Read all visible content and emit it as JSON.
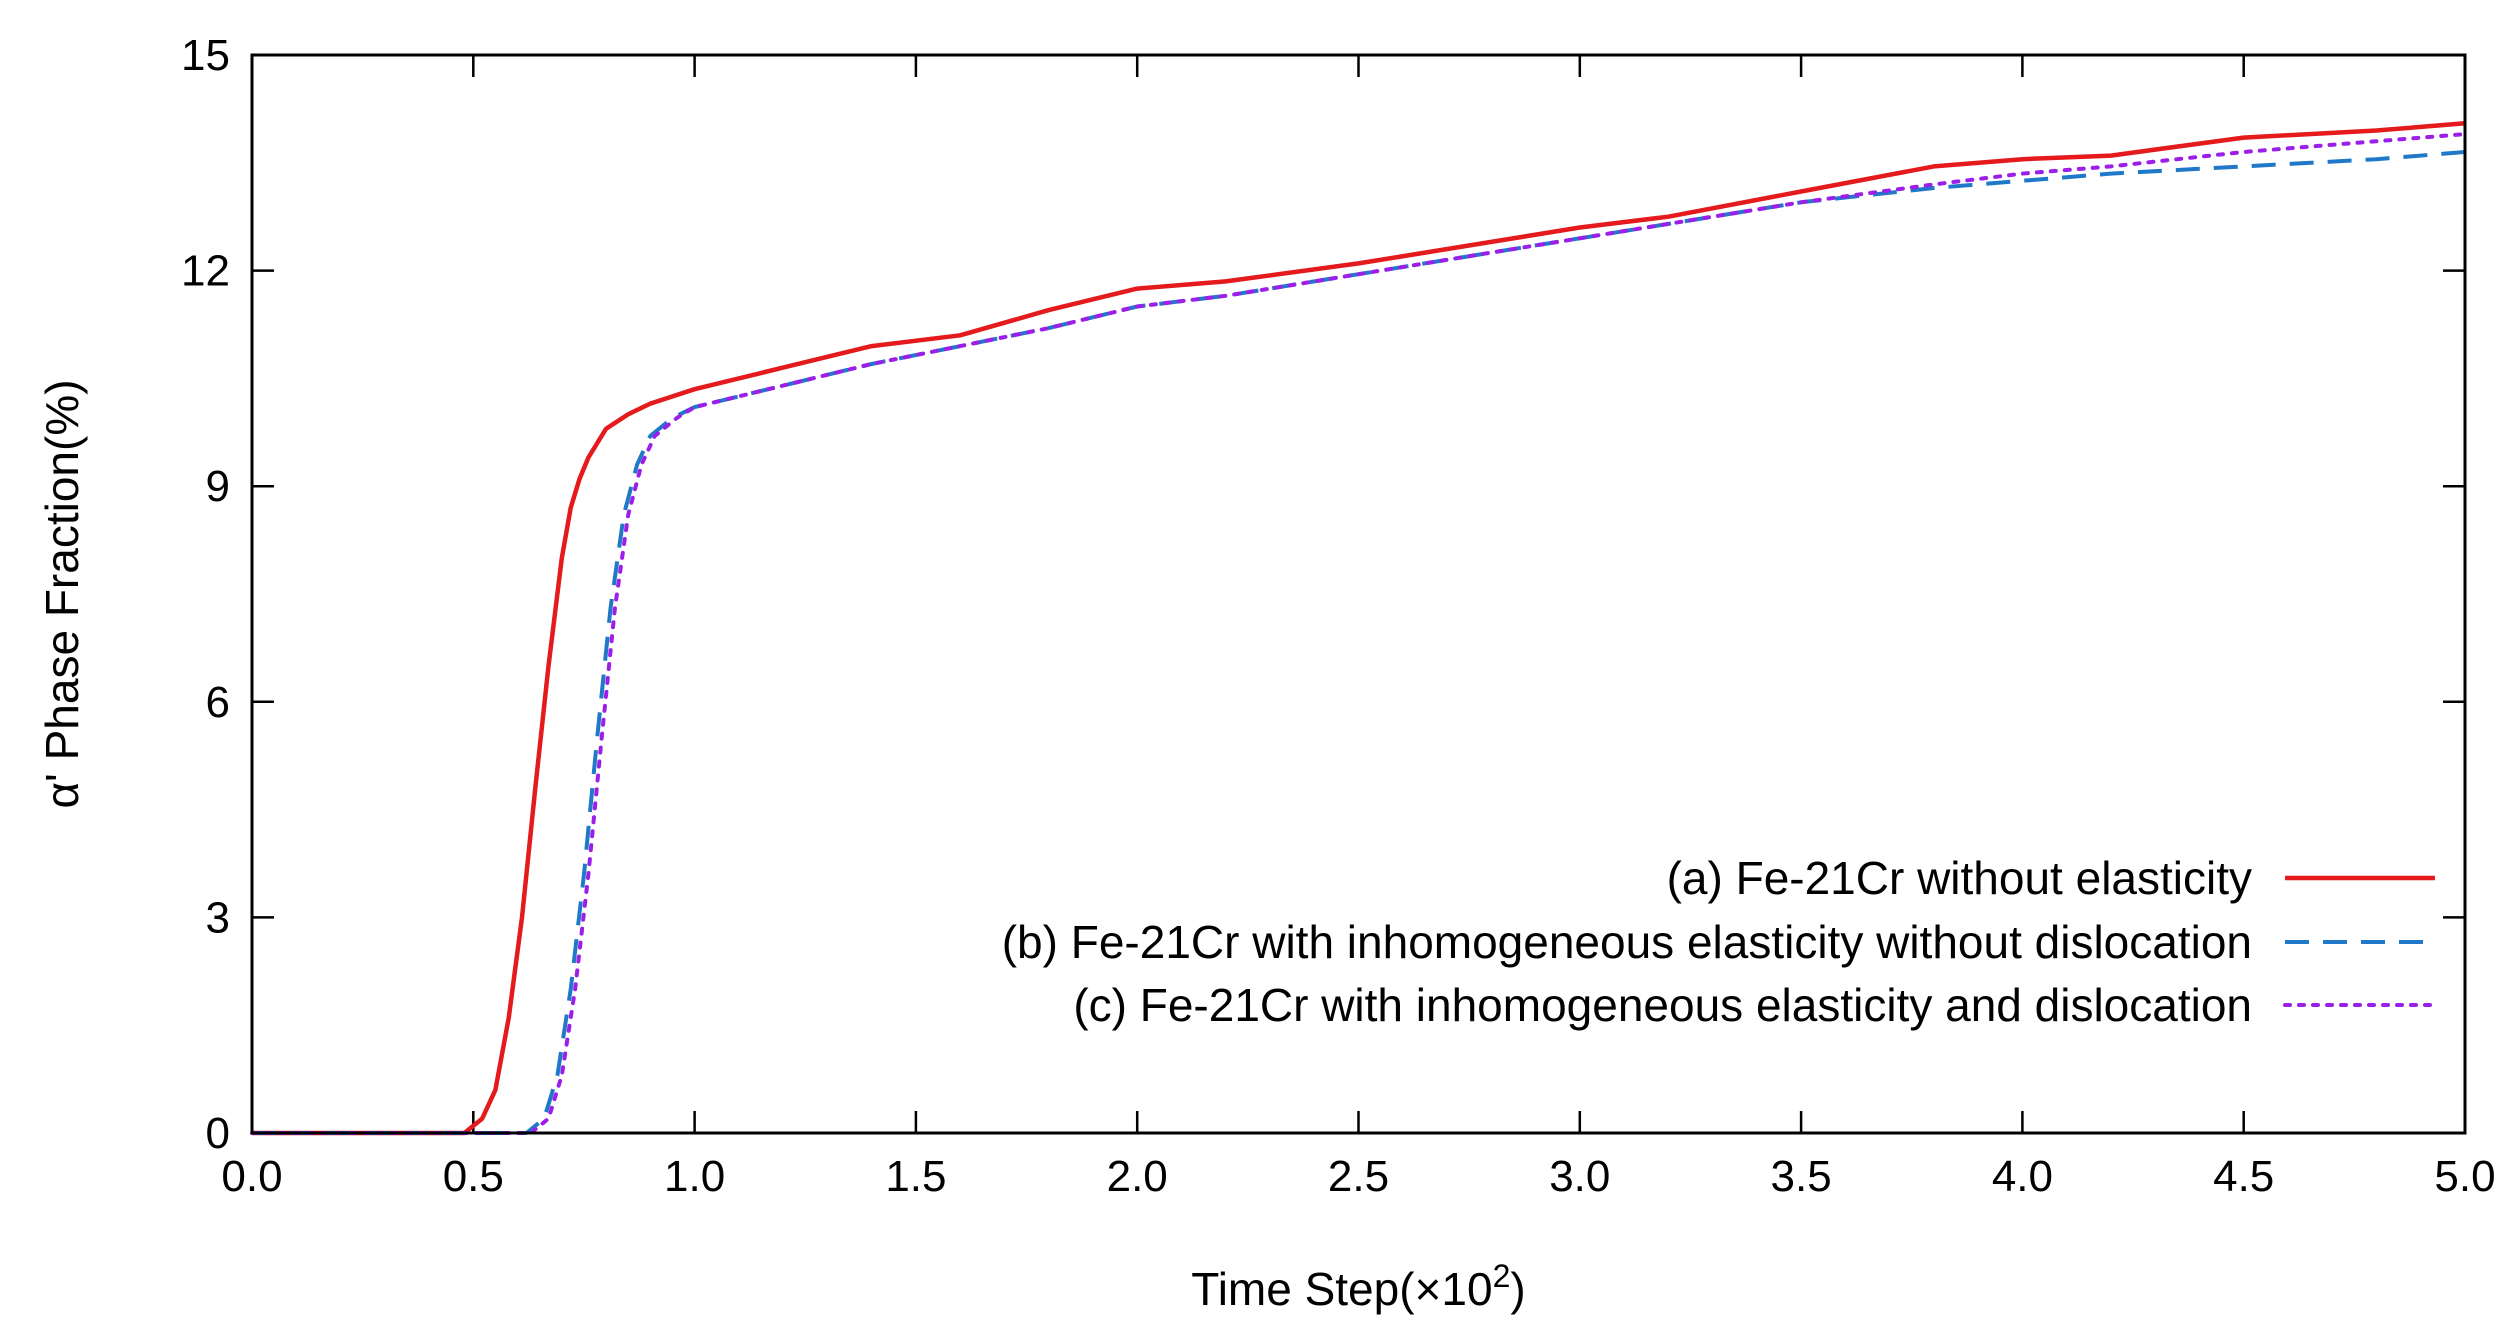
{
  "chart_data": {
    "type": "line",
    "title": "",
    "xlabel": "Time Step(×10",
    "xlabel_superscript": "2",
    "xlabel_suffix": ")",
    "ylabel": "α' Phase Fraction(%)",
    "xlim": [
      0.0,
      5.0
    ],
    "ylim": [
      0,
      15
    ],
    "xticks": [
      "0.0",
      "0.5",
      "1.0",
      "1.5",
      "2.0",
      "2.5",
      "3.0",
      "3.5",
      "4.0",
      "4.5",
      "5.0"
    ],
    "yticks": [
      "0",
      "3",
      "6",
      "9",
      "12",
      "15"
    ],
    "legend_position": "bottom-right",
    "series": [
      {
        "name": "(a) Fe-21Cr without elasticity",
        "color": "#e41a1c",
        "style": "solid",
        "x": [
          0.0,
          0.48,
          0.52,
          0.55,
          0.58,
          0.61,
          0.64,
          0.67,
          0.7,
          0.72,
          0.74,
          0.76,
          0.8,
          0.85,
          0.9,
          1.0,
          1.2,
          1.4,
          1.6,
          1.8,
          2.0,
          2.2,
          2.5,
          2.8,
          3.0,
          3.2,
          3.5,
          3.8,
          4.0,
          4.2,
          4.5,
          4.8,
          5.0
        ],
        "y": [
          0.0,
          0.0,
          0.2,
          0.6,
          1.6,
          3.0,
          4.8,
          6.5,
          8.0,
          8.7,
          9.1,
          9.4,
          9.8,
          10.0,
          10.15,
          10.35,
          10.65,
          10.95,
          11.1,
          11.45,
          11.75,
          11.85,
          12.1,
          12.4,
          12.6,
          12.75,
          13.1,
          13.45,
          13.55,
          13.6,
          13.85,
          13.95,
          14.05
        ]
      },
      {
        "name": "(b) Fe-21Cr with inhomogeneous elasticity without dislocation",
        "color": "#1f78c8",
        "style": "dashed",
        "x": [
          0.0,
          0.62,
          0.66,
          0.69,
          0.72,
          0.75,
          0.78,
          0.81,
          0.84,
          0.87,
          0.9,
          0.95,
          1.0,
          1.2,
          1.4,
          1.6,
          1.8,
          2.0,
          2.2,
          2.5,
          2.8,
          3.0,
          3.2,
          3.5,
          3.8,
          4.0,
          4.2,
          4.5,
          4.8,
          5.0
        ],
        "y": [
          0.0,
          0.0,
          0.2,
          0.8,
          2.0,
          3.6,
          5.5,
          7.3,
          8.6,
          9.3,
          9.7,
          9.95,
          10.1,
          10.4,
          10.7,
          10.95,
          11.2,
          11.5,
          11.65,
          11.95,
          12.25,
          12.45,
          12.65,
          12.95,
          13.15,
          13.25,
          13.35,
          13.45,
          13.55,
          13.65
        ]
      },
      {
        "name": "(c) Fe-21Cr with inhomogeneous elasticity and dislocation",
        "color": "#9b1fe8",
        "style": "dotted",
        "x": [
          0.0,
          0.63,
          0.67,
          0.7,
          0.73,
          0.76,
          0.79,
          0.82,
          0.85,
          0.88,
          0.91,
          0.96,
          1.0,
          1.2,
          1.4,
          1.6,
          1.8,
          2.0,
          2.2,
          2.5,
          2.8,
          3.0,
          3.2,
          3.5,
          3.8,
          4.0,
          4.2,
          4.5,
          4.8,
          5.0
        ],
        "y": [
          0.0,
          0.0,
          0.2,
          0.8,
          2.0,
          3.6,
          5.5,
          7.3,
          8.6,
          9.3,
          9.7,
          9.95,
          10.1,
          10.4,
          10.7,
          10.95,
          11.2,
          11.5,
          11.65,
          11.95,
          12.25,
          12.45,
          12.65,
          12.95,
          13.2,
          13.35,
          13.45,
          13.65,
          13.8,
          13.9
        ]
      }
    ]
  }
}
